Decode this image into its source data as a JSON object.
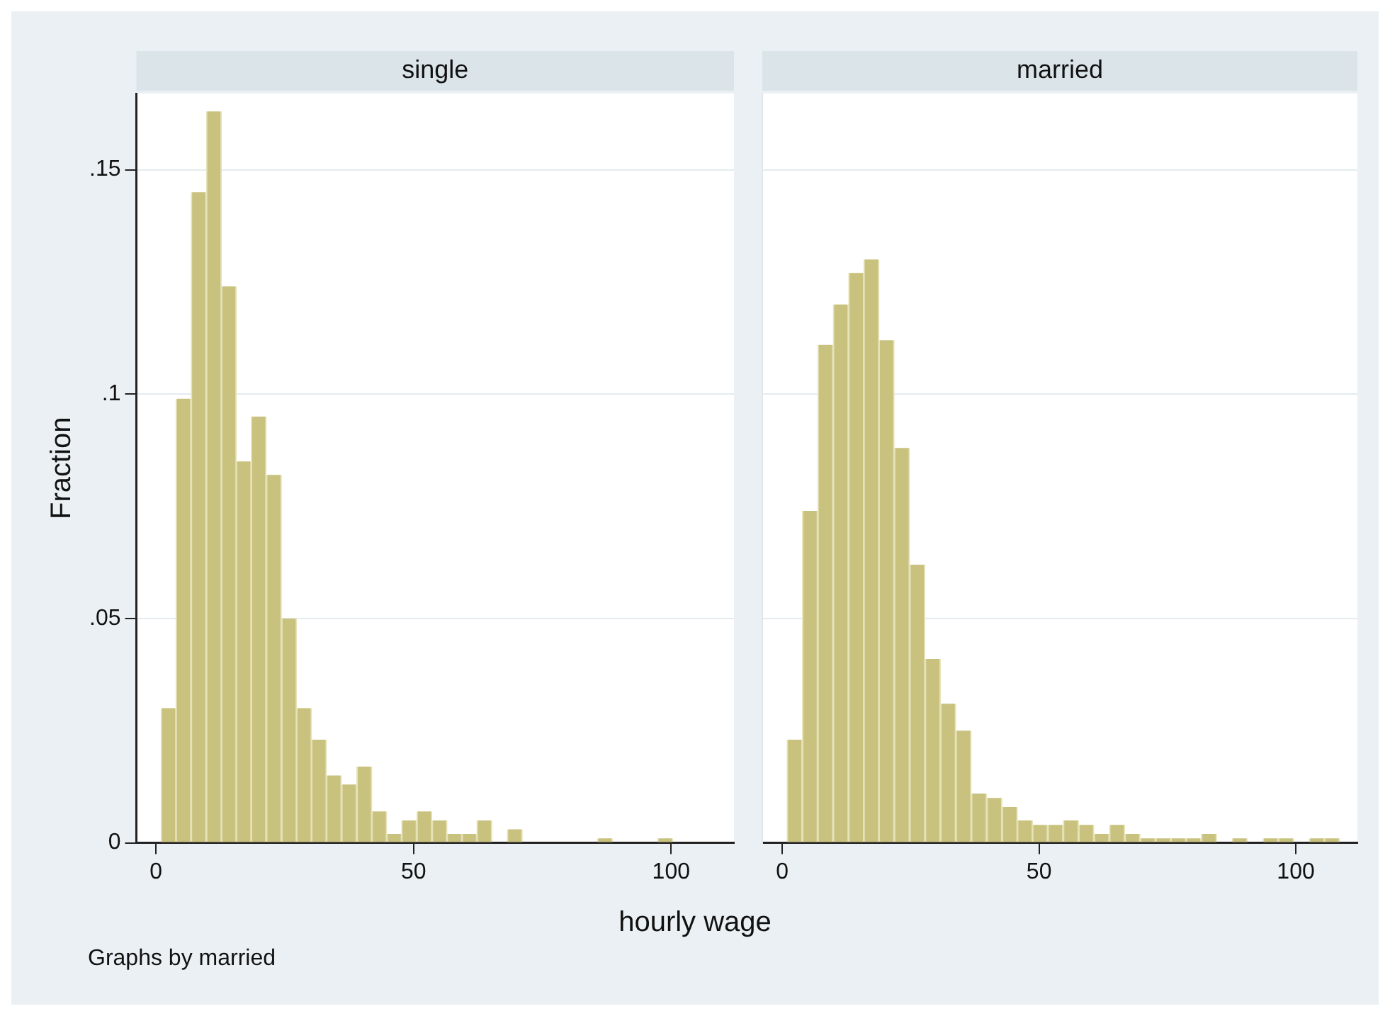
{
  "chart_data": [
    {
      "type": "histogram",
      "title": "single",
      "ylabel": "Fraction",
      "xlabel": "hourly wage",
      "annotations": [
        "Graphs by married"
      ],
      "color": "#c9c27f",
      "grid": "y",
      "bins": [
        1.0,
        3.9,
        6.8,
        9.8,
        12.7,
        15.6,
        18.5,
        21.4,
        24.4,
        27.3,
        30.2,
        33.1,
        36.0,
        39.0,
        41.9,
        44.8,
        47.7,
        50.6,
        53.6,
        56.5,
        59.4,
        62.3,
        65.2,
        68.2,
        71.1,
        74.0,
        76.9,
        79.8,
        82.8,
        85.7,
        88.6,
        91.5,
        94.4,
        97.4,
        100.3
      ],
      "values": [
        0.03,
        0.099,
        0.145,
        0.163,
        0.124,
        0.085,
        0.095,
        0.082,
        0.05,
        0.03,
        0.023,
        0.015,
        0.013,
        0.017,
        0.007,
        0.002,
        0.005,
        0.007,
        0.005,
        0.002,
        0.002,
        0.005,
        0,
        0.003,
        0,
        0,
        0,
        0,
        0,
        0.001,
        0,
        0,
        0,
        0.001
      ],
      "xlim": [
        -3.8,
        112.2
      ],
      "xticks": [
        0,
        50,
        100
      ],
      "ylim": [
        0,
        0.167
      ],
      "yticks": [
        {
          "value": 0,
          "label": "0"
        },
        {
          "value": 0.05,
          "label": ".05"
        },
        {
          "value": 0.1,
          "label": ".1"
        },
        {
          "value": 0.15,
          "label": ".15"
        }
      ]
    },
    {
      "type": "histogram",
      "title": "married",
      "color": "#c9c27f",
      "grid": "y",
      "tick_labels": "x",
      "bins": [
        0.9,
        3.9,
        6.9,
        9.9,
        12.9,
        15.9,
        18.8,
        21.8,
        24.8,
        27.8,
        30.8,
        33.8,
        36.8,
        39.8,
        42.8,
        45.8,
        48.7,
        51.7,
        54.7,
        57.7,
        60.7,
        63.7,
        66.7,
        69.7,
        72.7,
        75.7,
        78.6,
        81.6,
        84.6,
        87.6,
        90.6,
        93.6,
        96.6,
        99.6,
        102.6,
        105.6,
        108.5
      ],
      "values": [
        0.023,
        0.074,
        0.111,
        0.12,
        0.127,
        0.13,
        0.112,
        0.088,
        0.062,
        0.041,
        0.031,
        0.025,
        0.011,
        0.01,
        0.008,
        0.005,
        0.004,
        0.004,
        0.005,
        0.004,
        0.002,
        0.004,
        0.002,
        0.001,
        0.001,
        0.001,
        0.001,
        0.002,
        0,
        0.001,
        0,
        0.001,
        0.001,
        0,
        0.001,
        0.001
      ],
      "xlim": [
        -3.9,
        112
      ],
      "xticks": [
        0,
        50,
        100
      ],
      "ylim": [
        0,
        0.167
      ],
      "yticks": [
        {
          "value": 0,
          "label": null
        },
        {
          "value": 0.05,
          "label": null
        },
        {
          "value": 0.1,
          "label": null
        },
        {
          "value": 0.15,
          "label": null
        }
      ]
    }
  ]
}
